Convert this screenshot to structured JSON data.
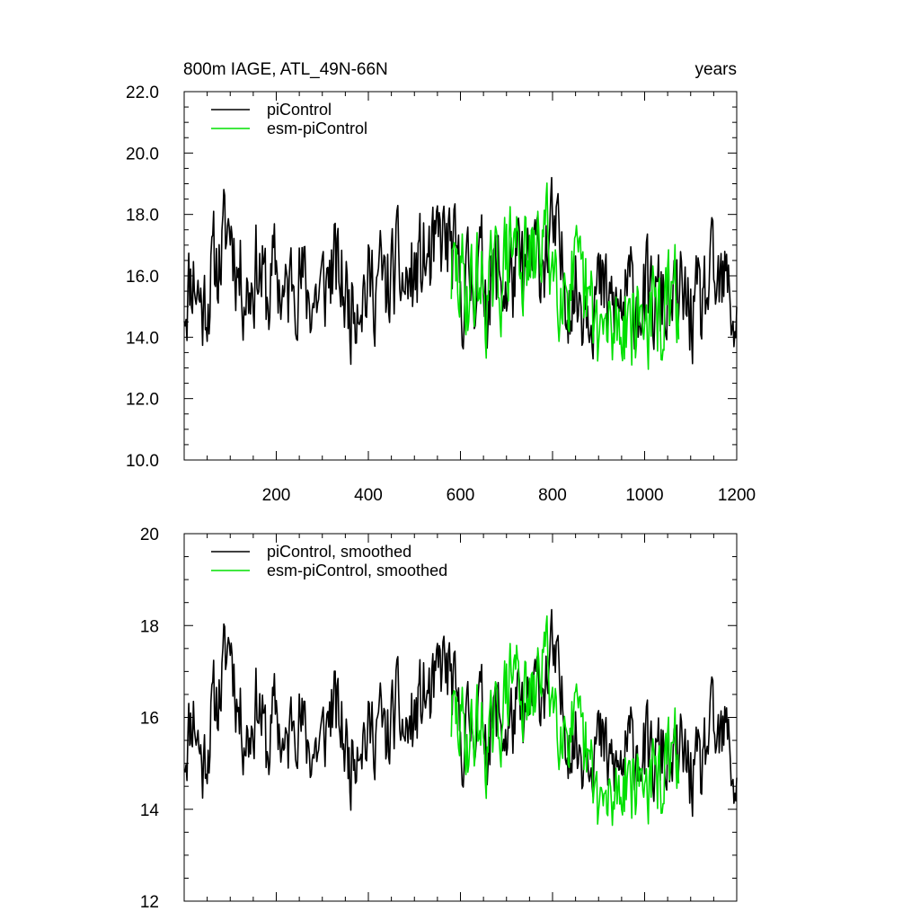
{
  "page": {
    "title_left": "800m IAGE, ATL_49N-66N",
    "title_right": "years"
  },
  "colors": {
    "piControl": "#000000",
    "esm_piControl": "#00e000"
  },
  "chart_data": [
    {
      "type": "line",
      "title": "800m IAGE, ATL_49N-66N",
      "units": "years",
      "xlim": [
        0,
        1200
      ],
      "ylim": [
        10,
        22
      ],
      "xticks": [
        200,
        400,
        600,
        800,
        1000,
        1200
      ],
      "xticklabels": [
        "200",
        "400",
        "600",
        "800",
        "1000",
        "1200"
      ],
      "yticks": [
        10,
        12,
        14,
        16,
        18,
        20,
        22
      ],
      "yticklabels": [
        "10.0",
        "12.0",
        "14.0",
        "16.0",
        "18.0",
        "20.0",
        "22.0"
      ],
      "legend_position": "top-left",
      "grid": false,
      "series": [
        {
          "name": "piControl",
          "color": "#000000",
          "x": [
            0,
            20,
            40,
            60,
            80,
            100,
            120,
            140,
            160,
            180,
            200,
            220,
            240,
            260,
            280,
            300,
            320,
            340,
            360,
            380,
            400,
            420,
            440,
            460,
            480,
            500,
            520,
            540,
            560,
            580,
            600,
            620,
            640,
            660,
            680,
            700,
            720,
            740,
            760,
            780,
            800,
            820,
            840,
            860,
            880,
            900,
            920,
            940,
            960,
            980,
            1000,
            1020,
            1040,
            1060,
            1080,
            1100,
            1120,
            1140,
            1160,
            1180,
            1200
          ],
          "y": [
            15.3,
            16.2,
            14.9,
            16.0,
            16.7,
            17.8,
            16.0,
            15.6,
            16.5,
            15.2,
            16.2,
            15.0,
            16.4,
            15.6,
            15.3,
            15.4,
            16.3,
            15.8,
            15.0,
            15.9,
            15.5,
            16.0,
            15.4,
            16.2,
            15.6,
            15.9,
            16.5,
            16.3,
            17.2,
            16.8,
            15.5,
            15.8,
            16.3,
            15.6,
            16.1,
            15.6,
            16.1,
            15.8,
            16.5,
            16.8,
            17.3,
            16.2,
            15.6,
            15.3,
            15.6,
            15.4,
            15.0,
            14.8,
            15.1,
            15.5,
            15.2,
            14.9,
            15.3,
            14.7,
            15.2,
            14.8,
            14.6,
            15.7,
            15.3,
            15.6,
            14.3
          ],
          "noise_amplitude": 1.6,
          "seed": 11
        },
        {
          "name": "esm-piControl",
          "color": "#00e000",
          "x": [
            580,
            600,
            620,
            640,
            660,
            680,
            700,
            720,
            740,
            760,
            780,
            800,
            820,
            840,
            860,
            880,
            900,
            920,
            940,
            960,
            980,
            1000,
            1020,
            1040,
            1060,
            1075
          ],
          "y": [
            16.0,
            15.8,
            15.5,
            15.9,
            15.3,
            15.8,
            16.5,
            17.2,
            16.3,
            16.2,
            17.6,
            16.5,
            16.0,
            15.8,
            15.4,
            14.8,
            14.2,
            13.9,
            14.4,
            14.9,
            14.6,
            14.7,
            14.5,
            14.8,
            15.0,
            15.4
          ],
          "noise_amplitude": 1.6,
          "seed": 29
        }
      ]
    },
    {
      "type": "line",
      "title": "",
      "xlim": [
        0,
        1200
      ],
      "ylim": [
        12,
        20
      ],
      "yticks": [
        12,
        14,
        16,
        18,
        20
      ],
      "yticklabels": [
        "12",
        "14",
        "16",
        "18",
        "20"
      ],
      "legend_position": "top-left",
      "grid": false,
      "series": [
        {
          "name": "piControl, smoothed",
          "color": "#000000",
          "x": [
            0,
            20,
            40,
            60,
            80,
            100,
            120,
            140,
            160,
            180,
            200,
            220,
            240,
            260,
            280,
            300,
            320,
            340,
            360,
            380,
            400,
            420,
            440,
            460,
            480,
            500,
            520,
            540,
            560,
            580,
            600,
            620,
            640,
            660,
            680,
            700,
            720,
            740,
            760,
            780,
            800,
            820,
            840,
            860,
            880,
            900,
            920,
            940,
            960,
            980,
            1000,
            1020,
            1040,
            1060,
            1080,
            1100,
            1120,
            1140,
            1160,
            1180,
            1200
          ],
          "y": [
            15.3,
            16.2,
            14.9,
            16.0,
            16.7,
            17.8,
            16.0,
            15.6,
            16.5,
            15.2,
            16.2,
            15.0,
            16.4,
            15.6,
            15.3,
            15.4,
            16.3,
            15.8,
            15.0,
            15.9,
            15.5,
            16.0,
            15.4,
            16.2,
            15.6,
            15.9,
            16.5,
            16.3,
            17.2,
            16.8,
            15.5,
            15.8,
            16.3,
            15.6,
            16.1,
            15.6,
            16.1,
            15.8,
            16.5,
            16.8,
            17.3,
            16.2,
            15.6,
            15.3,
            15.6,
            15.4,
            15.0,
            14.8,
            15.1,
            15.5,
            15.2,
            14.9,
            15.3,
            14.7,
            15.2,
            14.8,
            14.6,
            15.7,
            15.3,
            15.6,
            14.3
          ],
          "noise_amplitude": 0.9,
          "seed": 11
        },
        {
          "name": "esm-piControl, smoothed",
          "color": "#00e000",
          "x": [
            580,
            600,
            620,
            640,
            660,
            680,
            700,
            720,
            740,
            760,
            780,
            800,
            820,
            840,
            860,
            880,
            900,
            920,
            940,
            960,
            980,
            1000,
            1020,
            1040,
            1060,
            1075
          ],
          "y": [
            16.0,
            15.8,
            15.5,
            15.9,
            15.3,
            15.8,
            16.5,
            17.2,
            16.3,
            16.2,
            17.6,
            16.5,
            16.0,
            15.8,
            15.4,
            14.8,
            14.2,
            13.9,
            14.4,
            14.9,
            14.6,
            14.7,
            14.5,
            14.8,
            15.0,
            15.4
          ],
          "noise_amplitude": 0.9,
          "seed": 29
        }
      ]
    }
  ]
}
